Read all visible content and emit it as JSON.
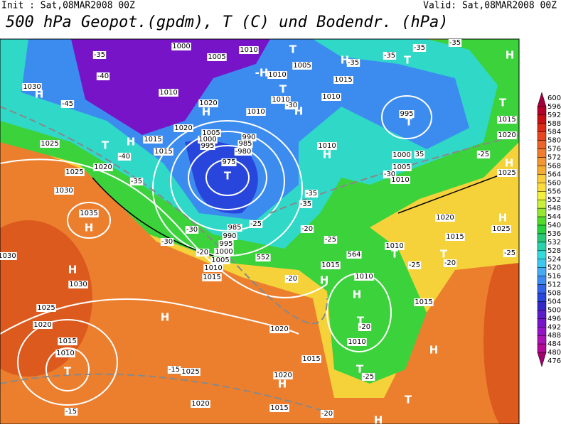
{
  "header": {
    "init": "Init : Sat,08MAR2008 00Z",
    "valid": "Valid: Sat,08MAR2008 00Z",
    "title": "500 hPa Geopot.(gpdm), T (C) und Bodendr. (hPa)"
  },
  "colorbar": {
    "labels": [
      "600",
      "596",
      "592",
      "588",
      "584",
      "580",
      "576",
      "572",
      "568",
      "564",
      "560",
      "556",
      "552",
      "548",
      "544",
      "540",
      "536",
      "532",
      "528",
      "524",
      "520",
      "516",
      "512",
      "508",
      "504",
      "500",
      "496",
      "492",
      "488",
      "484",
      "480",
      "476"
    ],
    "colors": [
      "#a0003c",
      "#b4002a",
      "#c80f14",
      "#dc2814",
      "#e6461e",
      "#eb6428",
      "#f07d2d",
      "#f59632",
      "#f5aa32",
      "#facd3c",
      "#fadc3c",
      "#f5f03c",
      "#c8f03c",
      "#96e632",
      "#50dc28",
      "#28d23c",
      "#28c878",
      "#28d2aa",
      "#32dcdc",
      "#3cc8f0",
      "#46aaf5",
      "#3c8cf0",
      "#3264e6",
      "#2846dc",
      "#3228c8",
      "#5a1ec8",
      "#7814c8",
      "#9614c8",
      "#aa14b4",
      "#b40a96",
      "#a0006e"
    ]
  },
  "map": {
    "labels": [
      "H",
      "1030",
      "-45",
      "-40",
      "-35",
      "1000",
      "1005",
      "1010",
      "T",
      "1005",
      "H",
      "-35",
      "-35",
      "T",
      "-35",
      "-35",
      "H",
      "1010",
      "1020",
      "H",
      "-H",
      "1010",
      "T",
      "1010",
      "-30",
      "H",
      "1015",
      "1010",
      "995",
      "T",
      "1010",
      "1020",
      "1015",
      "H",
      "T",
      "1025",
      "-40",
      "1015",
      "1005",
      "1000",
      "995",
      "990",
      "985",
      "-980",
      "975",
      "T",
      "1010",
      "H",
      "1000",
      "35",
      "1005",
      "-30",
      "1010",
      "-25",
      "H",
      "1025",
      "1015",
      "1020",
      "T",
      "1020",
      "-35",
      "1025",
      "1030",
      "1035",
      "H",
      "-35",
      "-35",
      "-25",
      "-30",
      "985",
      "990",
      "995",
      "1000",
      "1005",
      "1010",
      "1015",
      "552",
      "-30",
      "-20",
      "-20",
      "-25",
      "564",
      "1010",
      "T",
      "T",
      "-25",
      "-20",
      "1015",
      "1020",
      "1025",
      "H",
      "-25",
      "H",
      "1030",
      "-20",
      "1015",
      "H",
      "1010",
      "H",
      "1015",
      "T",
      "-20",
      "1030",
      "1025",
      "1020",
      "H",
      "1020",
      "1015",
      "1010",
      "T",
      "-15",
      "1025",
      "1010",
      "H",
      "1015",
      "1020",
      "H",
      "T",
      "-25",
      "1020",
      "1015",
      "-20",
      "T",
      "H",
      "-15"
    ]
  }
}
